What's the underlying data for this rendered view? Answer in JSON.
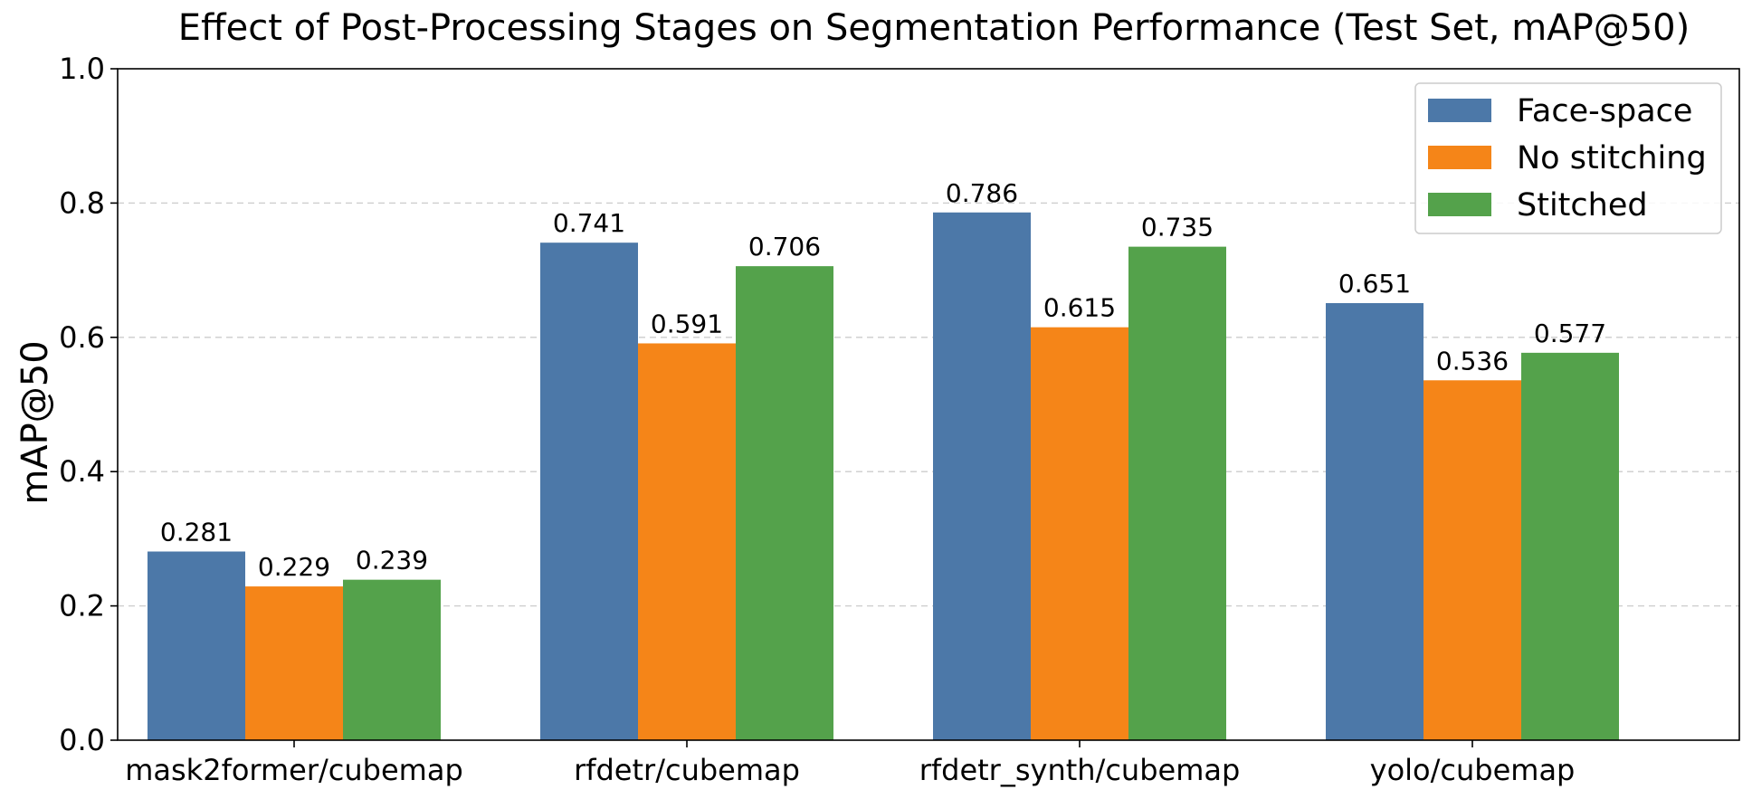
{
  "chart_data": {
    "type": "bar",
    "title": "Effect of Post-Processing Stages on Segmentation Performance (Test Set, mAP@50)",
    "xlabel": "",
    "ylabel": "mAP@50",
    "ylim": [
      0,
      1.0
    ],
    "yticks": [
      "0.0",
      "0.2",
      "0.4",
      "0.6",
      "0.8",
      "1.0"
    ],
    "grid": "y, dashed",
    "legend_position": "top-right",
    "categories": [
      "mask2former/cubemap",
      "rfdetr/cubemap",
      "rfdetr_synth/cubemap",
      "yolo/cubemap"
    ],
    "series": [
      {
        "name": "Face-space",
        "color": "#4c78a8",
        "values": [
          0.281,
          0.741,
          0.786,
          0.651
        ],
        "labels": [
          "0.281",
          "0.741",
          "0.786",
          "0.651"
        ]
      },
      {
        "name": "No stitching",
        "color": "#f58518",
        "values": [
          0.229,
          0.591,
          0.615,
          0.536
        ],
        "labels": [
          "0.229",
          "0.591",
          "0.615",
          "0.536"
        ]
      },
      {
        "name": "Stitched",
        "color": "#54a24b",
        "values": [
          0.239,
          0.706,
          0.735,
          0.577
        ],
        "labels": [
          "0.239",
          "0.706",
          "0.735",
          "0.577"
        ]
      }
    ]
  }
}
